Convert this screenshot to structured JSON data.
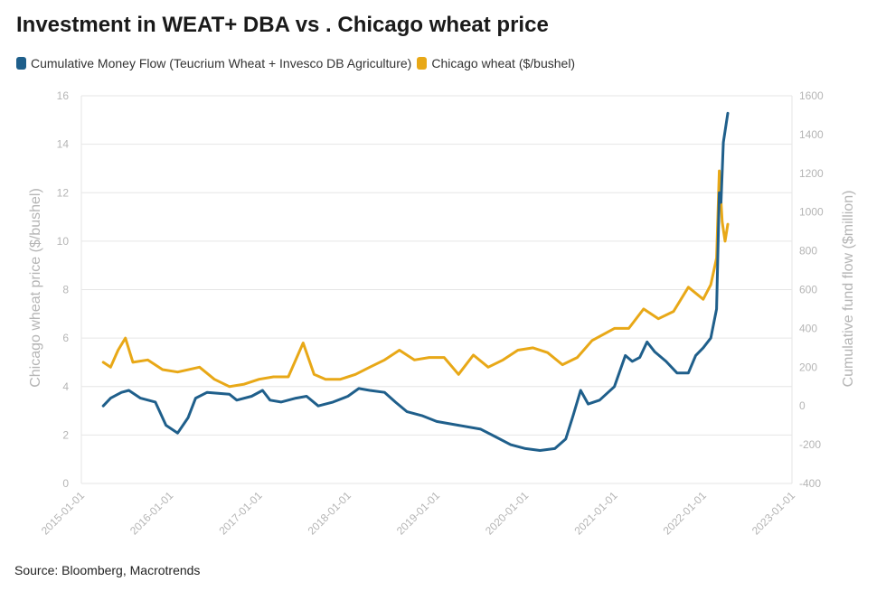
{
  "title": "Investment in WEAT+ DBA vs . Chicago wheat price",
  "source": "Source: Bloomberg, Macrotrends",
  "chart_data": {
    "type": "line",
    "title": "Investment in WEAT+ DBA vs . Chicago wheat price",
    "xlabel": "",
    "ylabel_left": "Chicago wheat price ($/bushel)",
    "ylabel_right": "Cumulative fund flow ($million)",
    "x_ticks": [
      "2015-01-01",
      "2016-01-01",
      "2017-01-01",
      "2018-01-01",
      "2019-01-01",
      "2020-01-01",
      "2021-01-01",
      "2022-01-01",
      "2023-01-01"
    ],
    "xlim": [
      "2015-01-01",
      "2023-01-01"
    ],
    "ylim_left": [
      0,
      16
    ],
    "ylim_right": [
      -400,
      1600
    ],
    "y_ticks_left": [
      0,
      2,
      4,
      6,
      8,
      10,
      12,
      14,
      16
    ],
    "y_ticks_right": [
      -400,
      -200,
      0,
      200,
      400,
      600,
      800,
      1000,
      1200,
      1400,
      1600
    ],
    "grid": "horizontal",
    "legend_position": "top-left",
    "series": [
      {
        "name": "Cumulative Money Flow (Teucrium Wheat + Invesco DB Agriculture)",
        "axis": "right",
        "color": "#1f5f8b",
        "points": [
          [
            "2015-04-01",
            0
          ],
          [
            "2015-05-01",
            40
          ],
          [
            "2015-06-15",
            70
          ],
          [
            "2015-07-15",
            80
          ],
          [
            "2015-09-01",
            40
          ],
          [
            "2015-11-01",
            20
          ],
          [
            "2015-12-15",
            -100
          ],
          [
            "2016-02-01",
            -140
          ],
          [
            "2016-03-15",
            -60
          ],
          [
            "2016-04-15",
            40
          ],
          [
            "2016-06-01",
            70
          ],
          [
            "2016-09-01",
            60
          ],
          [
            "2016-10-01",
            30
          ],
          [
            "2016-12-01",
            50
          ],
          [
            "2017-01-15",
            80
          ],
          [
            "2017-02-15",
            30
          ],
          [
            "2017-04-01",
            20
          ],
          [
            "2017-06-01",
            40
          ],
          [
            "2017-07-15",
            50
          ],
          [
            "2017-09-01",
            0
          ],
          [
            "2017-11-01",
            20
          ],
          [
            "2018-01-01",
            50
          ],
          [
            "2018-02-15",
            90
          ],
          [
            "2018-04-01",
            80
          ],
          [
            "2018-06-01",
            70
          ],
          [
            "2018-07-15",
            20
          ],
          [
            "2018-09-01",
            -30
          ],
          [
            "2018-11-01",
            -50
          ],
          [
            "2019-01-01",
            -80
          ],
          [
            "2019-04-01",
            -100
          ],
          [
            "2019-07-01",
            -120
          ],
          [
            "2019-09-01",
            -160
          ],
          [
            "2019-11-01",
            -200
          ],
          [
            "2020-01-01",
            -220
          ],
          [
            "2020-03-01",
            -230
          ],
          [
            "2020-05-01",
            -220
          ],
          [
            "2020-06-15",
            -170
          ],
          [
            "2020-07-15",
            -50
          ],
          [
            "2020-08-15",
            80
          ],
          [
            "2020-09-15",
            10
          ],
          [
            "2020-11-01",
            30
          ],
          [
            "2021-01-01",
            100
          ],
          [
            "2021-02-15",
            260
          ],
          [
            "2021-03-15",
            230
          ],
          [
            "2021-04-15",
            250
          ],
          [
            "2021-05-15",
            330
          ],
          [
            "2021-06-15",
            280
          ],
          [
            "2021-08-01",
            230
          ],
          [
            "2021-09-15",
            170
          ],
          [
            "2021-11-01",
            170
          ],
          [
            "2021-12-01",
            260
          ],
          [
            "2022-01-01",
            300
          ],
          [
            "2022-02-01",
            350
          ],
          [
            "2022-02-25",
            500
          ],
          [
            "2022-03-08",
            1100
          ],
          [
            "2022-03-15",
            1050
          ],
          [
            "2022-03-25",
            1360
          ],
          [
            "2022-04-12",
            1510
          ]
        ]
      },
      {
        "name": "Chicago wheat ($/bushel)",
        "axis": "left",
        "color": "#e8a817",
        "points": [
          [
            "2015-04-01",
            5.0
          ],
          [
            "2015-05-01",
            4.8
          ],
          [
            "2015-06-01",
            5.5
          ],
          [
            "2015-07-01",
            6.0
          ],
          [
            "2015-08-01",
            5.0
          ],
          [
            "2015-10-01",
            5.1
          ],
          [
            "2015-12-01",
            4.7
          ],
          [
            "2016-02-01",
            4.6
          ],
          [
            "2016-05-01",
            4.8
          ],
          [
            "2016-07-01",
            4.3
          ],
          [
            "2016-09-01",
            4.0
          ],
          [
            "2016-11-01",
            4.1
          ],
          [
            "2017-01-01",
            4.3
          ],
          [
            "2017-03-01",
            4.4
          ],
          [
            "2017-05-01",
            4.4
          ],
          [
            "2017-07-01",
            5.8
          ],
          [
            "2017-08-15",
            4.5
          ],
          [
            "2017-10-01",
            4.3
          ],
          [
            "2017-12-01",
            4.3
          ],
          [
            "2018-02-01",
            4.5
          ],
          [
            "2018-04-01",
            4.8
          ],
          [
            "2018-06-01",
            5.1
          ],
          [
            "2018-08-01",
            5.5
          ],
          [
            "2018-10-01",
            5.1
          ],
          [
            "2018-12-01",
            5.2
          ],
          [
            "2019-02-01",
            5.2
          ],
          [
            "2019-04-01",
            4.5
          ],
          [
            "2019-06-01",
            5.3
          ],
          [
            "2019-08-01",
            4.8
          ],
          [
            "2019-10-01",
            5.1
          ],
          [
            "2019-12-01",
            5.5
          ],
          [
            "2020-02-01",
            5.6
          ],
          [
            "2020-04-01",
            5.4
          ],
          [
            "2020-06-01",
            4.9
          ],
          [
            "2020-08-01",
            5.2
          ],
          [
            "2020-10-01",
            5.9
          ],
          [
            "2021-01-01",
            6.4
          ],
          [
            "2021-03-01",
            6.4
          ],
          [
            "2021-05-01",
            7.2
          ],
          [
            "2021-07-01",
            6.8
          ],
          [
            "2021-09-01",
            7.1
          ],
          [
            "2021-11-01",
            8.1
          ],
          [
            "2022-01-01",
            7.6
          ],
          [
            "2022-02-01",
            8.2
          ],
          [
            "2022-02-25",
            9.3
          ],
          [
            "2022-03-08",
            12.9
          ],
          [
            "2022-03-20",
            10.8
          ],
          [
            "2022-04-01",
            10.0
          ],
          [
            "2022-04-12",
            10.7
          ]
        ]
      }
    ]
  }
}
